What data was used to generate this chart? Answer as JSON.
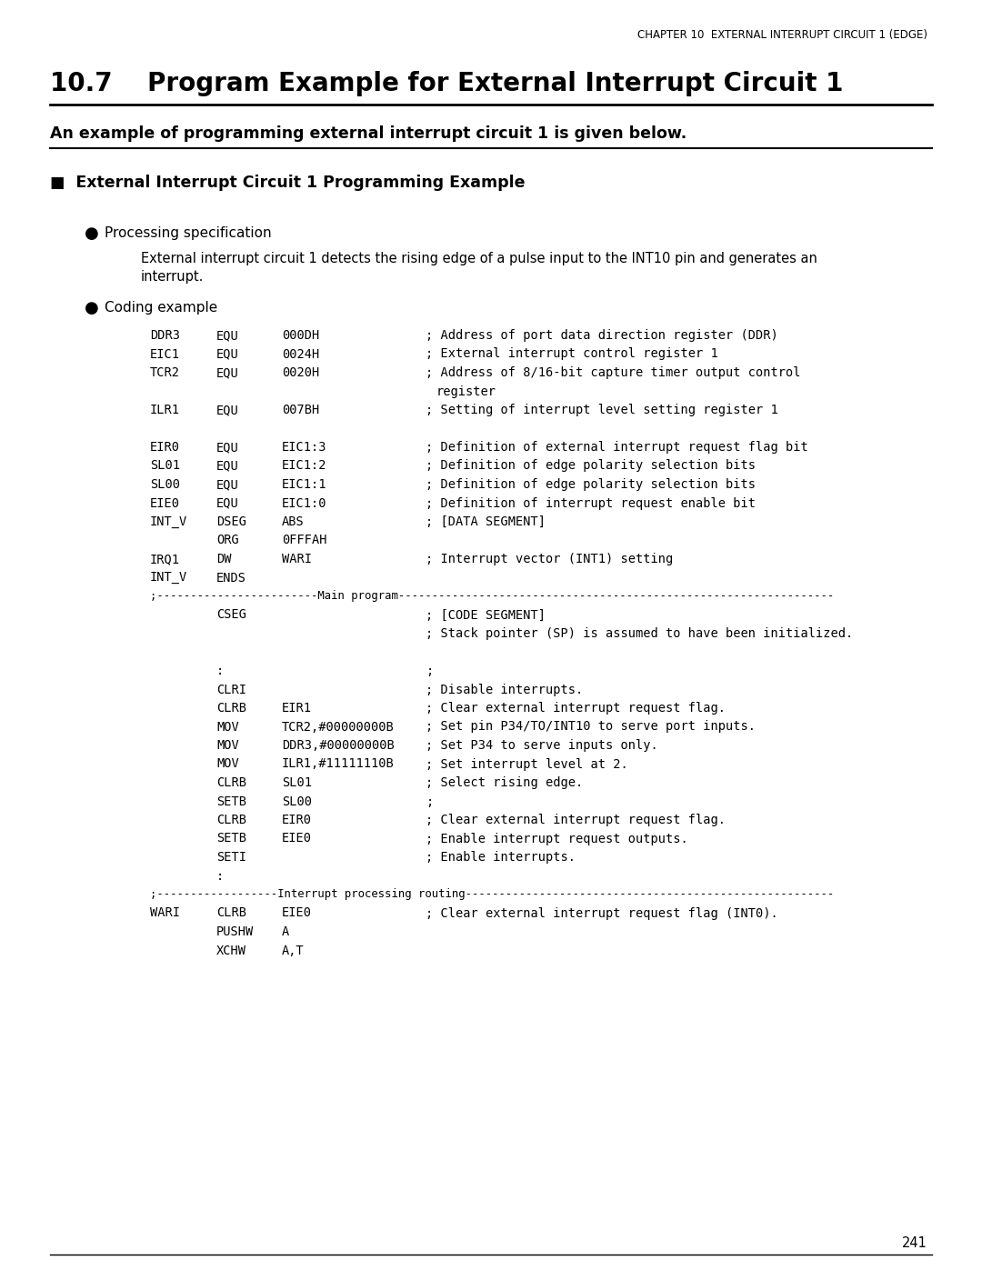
{
  "bg_color": "#ffffff",
  "header_text": "CHAPTER 10  EXTERNAL INTERRUPT CIRCUIT 1 (EDGE)",
  "title": "10.7    Program Example for External Interrupt Circuit 1",
  "subtitle": "An example of programming external interrupt circuit 1 is given below.",
  "section_title": "External Interrupt Circuit 1 Programming Example",
  "bullet1": "Processing specification",
  "proc_line1": "External interrupt circuit 1 detects the rising edge of a pulse input to the INT10 pin and generates an",
  "proc_line2": "interrupt.",
  "bullet2": "Coding example",
  "page_num": "241",
  "code_lines": [
    [
      "DDR3",
      "EQU",
      "000DH",
      "; Address of port data direction register (DDR)",
      ""
    ],
    [
      "EIC1",
      "EQU",
      "0024H",
      "; External interrupt control register 1",
      ""
    ],
    [
      "TCR2",
      "EQU",
      "0020H",
      "; Address of 8/16-bit capture timer output control",
      "register"
    ],
    [
      "ILR1",
      "EQU",
      "007BH",
      "; Setting of interrupt level setting register 1",
      ""
    ],
    [
      "BLANK",
      "",
      "",
      "",
      ""
    ],
    [
      "EIR0",
      "EQU",
      "EIC1:3",
      "; Definition of external interrupt request flag bit",
      ""
    ],
    [
      "SL01",
      "EQU",
      "EIC1:2",
      "; Definition of edge polarity selection bits",
      ""
    ],
    [
      "SL00",
      "EQU",
      "EIC1:1",
      "; Definition of edge polarity selection bits",
      ""
    ],
    [
      "EIE0",
      "EQU",
      "EIC1:0",
      "; Definition of interrupt request enable bit",
      ""
    ],
    [
      "INT_V",
      "DSEG",
      "ABS",
      "; [DATA SEGMENT]",
      ""
    ],
    [
      "",
      "ORG",
      "0FFFAH",
      "",
      ""
    ],
    [
      "IRQ1",
      "DW",
      "WARI",
      "; Interrupt vector (INT1) setting",
      ""
    ],
    [
      "INT_V",
      "ENDS",
      "",
      "",
      ""
    ],
    [
      "SEP_MAIN",
      "",
      "",
      "",
      ""
    ],
    [
      "",
      "CSEG",
      "",
      "; [CODE SEGMENT]",
      ""
    ],
    [
      "",
      "",
      "",
      "; Stack pointer (SP) is assumed to have been initialized.",
      ""
    ],
    [
      "BLANK2",
      "",
      "",
      "",
      ""
    ],
    [
      "",
      ":",
      "",
      ";",
      ""
    ],
    [
      "",
      "CLRI",
      "",
      "; Disable interrupts.",
      ""
    ],
    [
      "",
      "CLRB",
      "EIR1",
      "; Clear external interrupt request flag.",
      ""
    ],
    [
      "",
      "MOV",
      "TCR2,#00000000B",
      "; Set pin P34/TO/INT10 to serve port inputs.",
      ""
    ],
    [
      "",
      "MOV",
      "DDR3,#00000000B",
      "; Set P34 to serve inputs only.",
      ""
    ],
    [
      "",
      "MOV",
      "ILR1,#11111110B",
      "; Set interrupt level at 2.",
      ""
    ],
    [
      "",
      "CLRB",
      "SL01",
      "; Select rising edge.",
      ""
    ],
    [
      "",
      "SETB",
      "SL00",
      ";",
      ""
    ],
    [
      "",
      "CLRB",
      "EIR0",
      "; Clear external interrupt request flag.",
      ""
    ],
    [
      "",
      "SETB",
      "EIE0",
      "; Enable interrupt request outputs.",
      ""
    ],
    [
      "",
      "SETI",
      "",
      "; Enable interrupts.",
      ""
    ],
    [
      "",
      ":",
      "",
      "",
      ""
    ],
    [
      "SEP_INT",
      "",
      "",
      "",
      ""
    ],
    [
      "WARI",
      "CLRB",
      "EIE0",
      "; Clear external interrupt request flag (INT0).",
      ""
    ],
    [
      "",
      "PUSHW",
      "A",
      "",
      ""
    ],
    [
      "",
      "XCHW",
      "A,T",
      "",
      ""
    ]
  ]
}
